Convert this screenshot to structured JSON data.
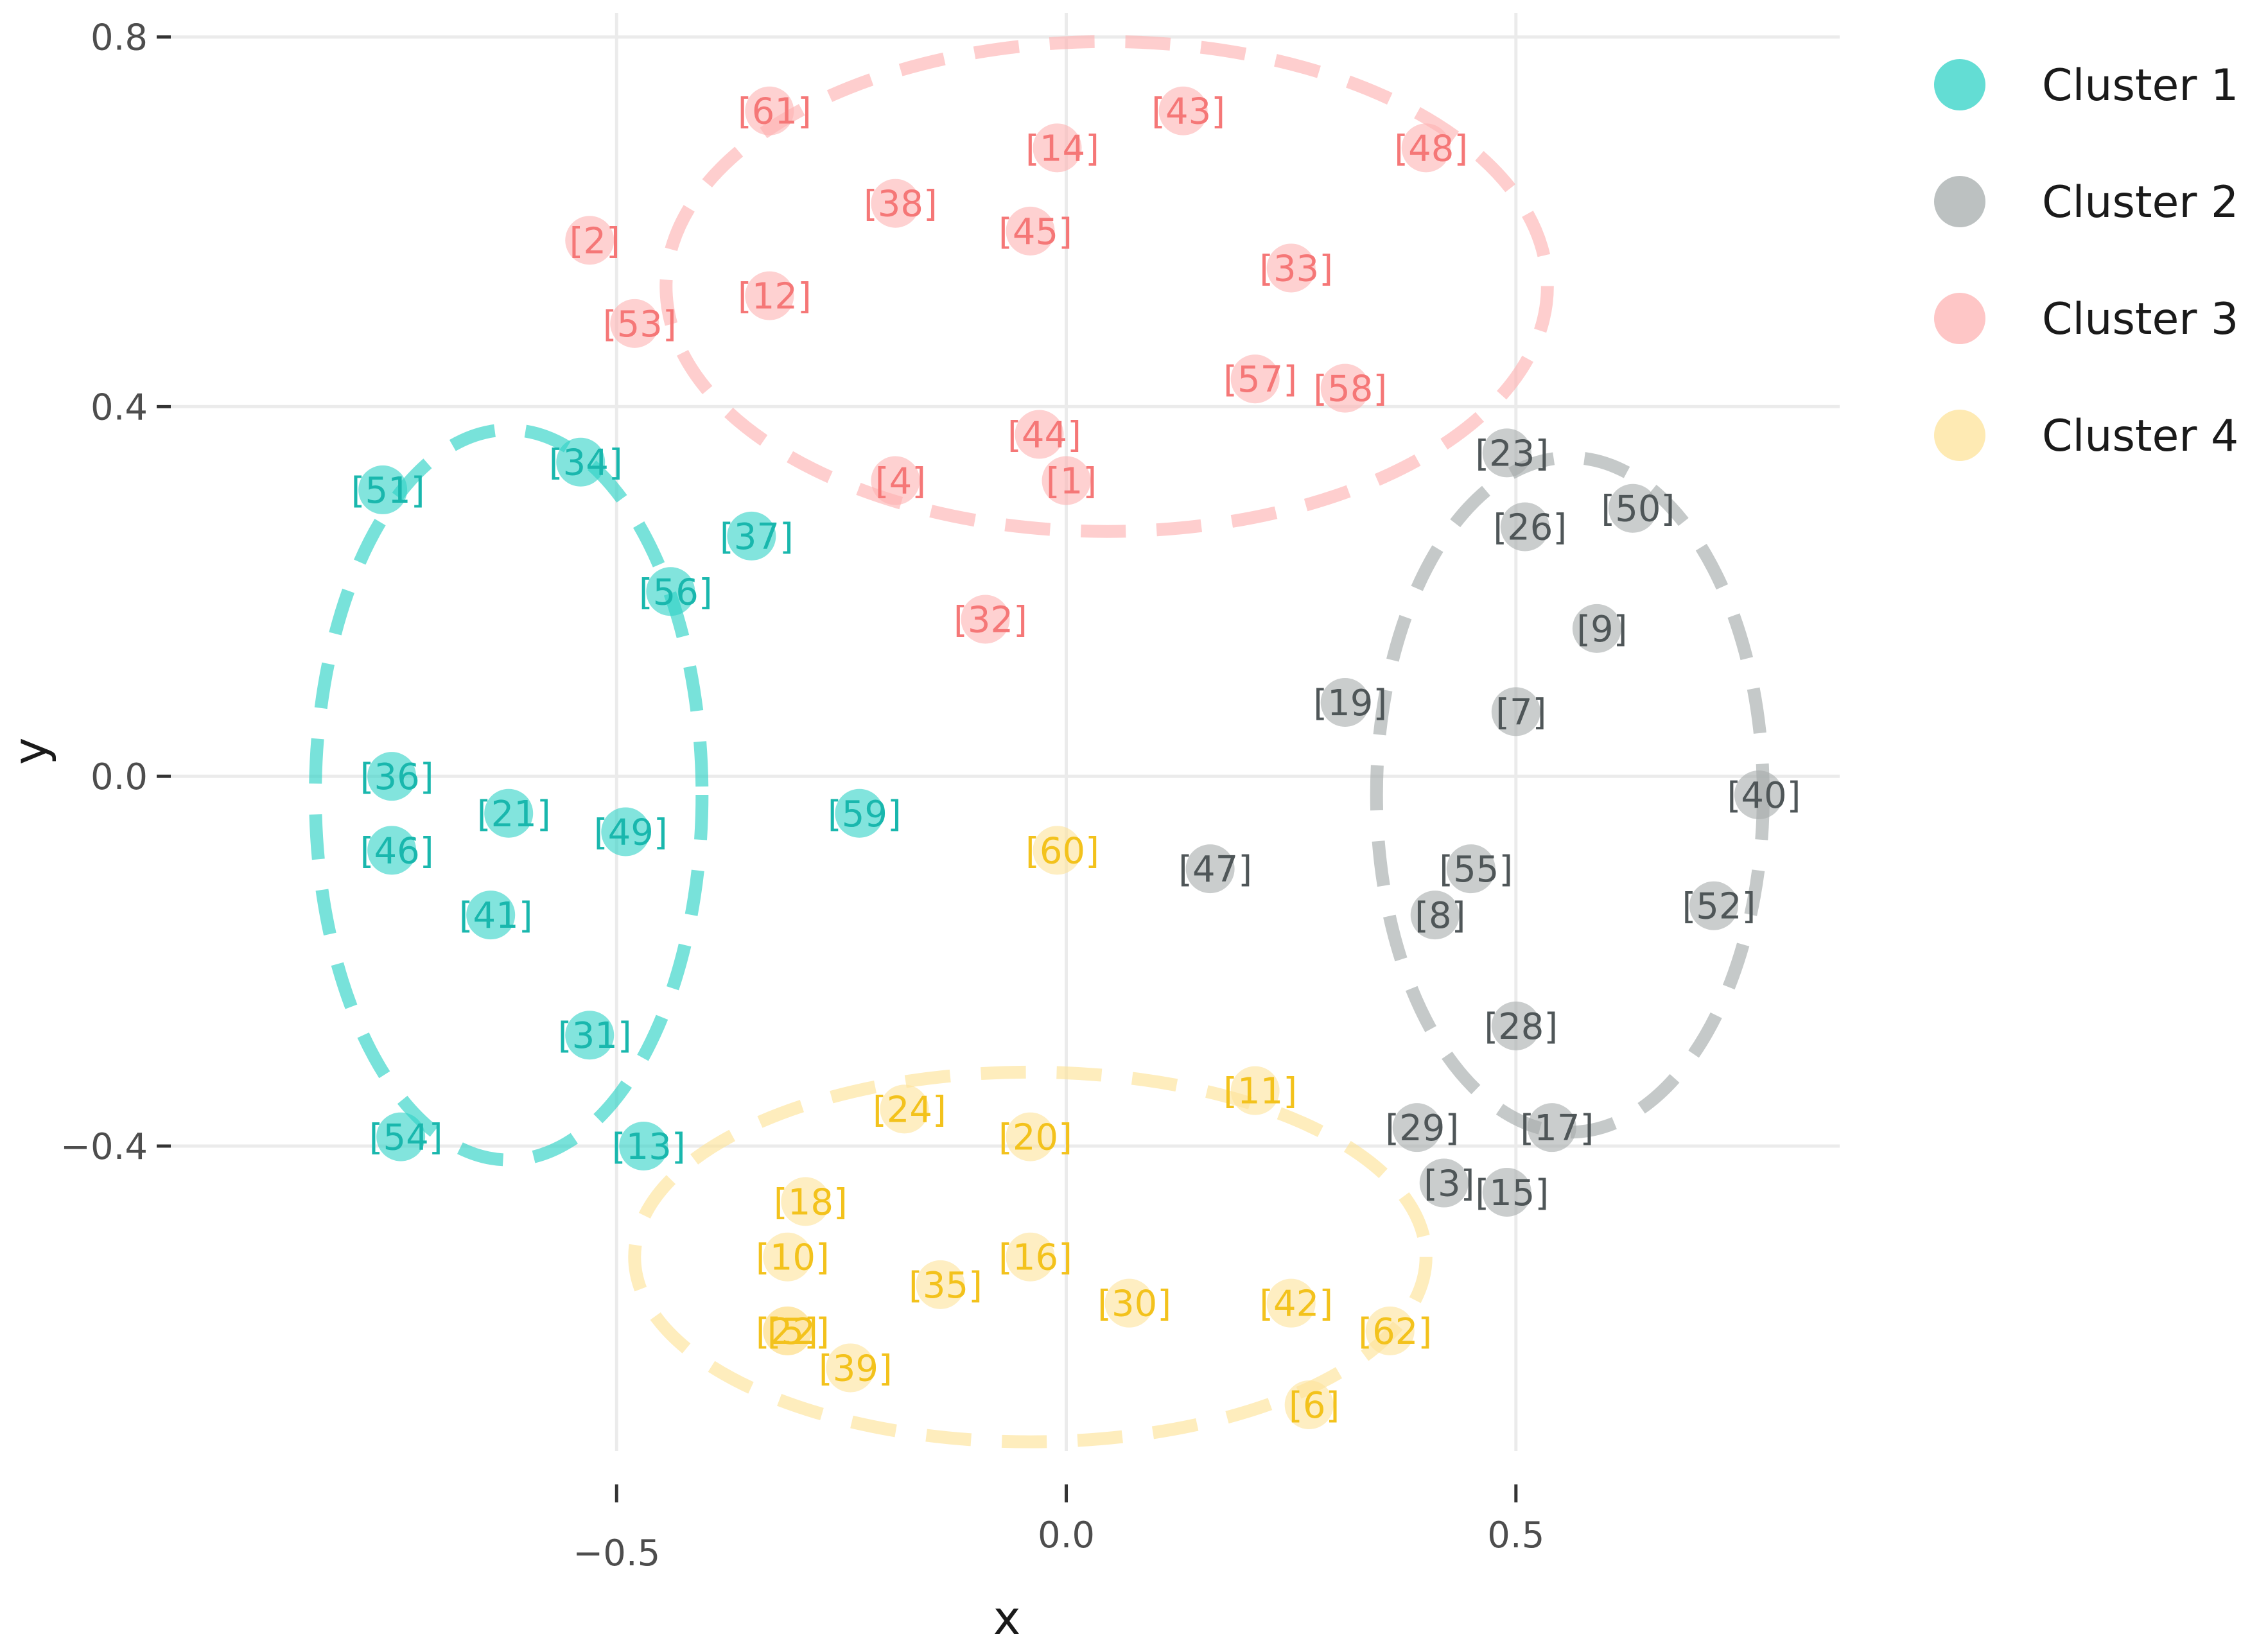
{
  "chart_data": {
    "type": "scatter",
    "title": "",
    "xlabel": "x",
    "ylabel": "y",
    "xlim": [
      -1.0,
      0.86
    ],
    "ylim": [
      -0.73,
      0.84
    ],
    "x_ticks": [
      {
        "value": -0.5,
        "label": "−0.5"
      },
      {
        "value": 0.0,
        "label": "0.0"
      },
      {
        "value": 0.5,
        "label": "0.5"
      }
    ],
    "y_ticks": [
      {
        "value": 0.8,
        "label": "0.8"
      },
      {
        "value": 0.4,
        "label": "0.4"
      },
      {
        "value": 0.0,
        "label": "0.0"
      },
      {
        "value": -0.4,
        "label": "−0.4"
      }
    ],
    "grid": true,
    "legend_position": "right",
    "series": [
      {
        "name": "Cluster 1",
        "color": "#2fd2c6",
        "label_color": "#19b7ad",
        "ellipse": {
          "cx": -0.62,
          "cy": -0.02,
          "rx": 0.215,
          "ry": 0.395
        },
        "points": [
          {
            "id": "[51]",
            "x": -0.76,
            "y": 0.31
          },
          {
            "id": "[34]",
            "x": -0.54,
            "y": 0.34
          },
          {
            "id": "[37]",
            "x": -0.35,
            "y": 0.26
          },
          {
            "id": "[56]",
            "x": -0.44,
            "y": 0.2
          },
          {
            "id": "[36]",
            "x": -0.75,
            "y": 0.0
          },
          {
            "id": "[21]",
            "x": -0.62,
            "y": -0.04
          },
          {
            "id": "[49]",
            "x": -0.49,
            "y": -0.06
          },
          {
            "id": "[46]",
            "x": -0.75,
            "y": -0.08
          },
          {
            "id": "[59]",
            "x": -0.23,
            "y": -0.04
          },
          {
            "id": "[41]",
            "x": -0.64,
            "y": -0.15
          },
          {
            "id": "[31]",
            "x": -0.53,
            "y": -0.28
          },
          {
            "id": "[54]",
            "x": -0.74,
            "y": -0.39
          },
          {
            "id": "[13]",
            "x": -0.47,
            "y": -0.4
          }
        ]
      },
      {
        "name": "Cluster 2",
        "color": "#a6acac",
        "label_color": "#4f5658",
        "ellipse": {
          "cx": 0.56,
          "cy": -0.02,
          "rx": 0.215,
          "ry": 0.365
        },
        "points": [
          {
            "id": "[23]",
            "x": 0.49,
            "y": 0.35
          },
          {
            "id": "[50]",
            "x": 0.63,
            "y": 0.29
          },
          {
            "id": "[26]",
            "x": 0.51,
            "y": 0.27
          },
          {
            "id": "[9]",
            "x": 0.59,
            "y": 0.16
          },
          {
            "id": "[19]",
            "x": 0.31,
            "y": 0.08
          },
          {
            "id": "[7]",
            "x": 0.5,
            "y": 0.07
          },
          {
            "id": "[40]",
            "x": 0.77,
            "y": -0.02
          },
          {
            "id": "[47]",
            "x": 0.16,
            "y": -0.1
          },
          {
            "id": "[55]",
            "x": 0.45,
            "y": -0.1
          },
          {
            "id": "[8]",
            "x": 0.41,
            "y": -0.15
          },
          {
            "id": "[52]",
            "x": 0.72,
            "y": -0.14
          },
          {
            "id": "[28]",
            "x": 0.5,
            "y": -0.27
          },
          {
            "id": "[29]",
            "x": 0.39,
            "y": -0.38
          },
          {
            "id": "[17]",
            "x": 0.54,
            "y": -0.38
          },
          {
            "id": "[3]",
            "x": 0.42,
            "y": -0.44
          },
          {
            "id": "[15]",
            "x": 0.49,
            "y": -0.45
          }
        ]
      },
      {
        "name": "Cluster 3",
        "color": "#fdb3b3",
        "label_color": "#f57777",
        "ellipse": {
          "cx": 0.045,
          "cy": 0.53,
          "rx": 0.49,
          "ry": 0.265
        },
        "points": [
          {
            "id": "[61]",
            "x": -0.33,
            "y": 0.72
          },
          {
            "id": "[43]",
            "x": 0.13,
            "y": 0.72
          },
          {
            "id": "[14]",
            "x": -0.01,
            "y": 0.68
          },
          {
            "id": "[48]",
            "x": 0.4,
            "y": 0.68
          },
          {
            "id": "[38]",
            "x": -0.19,
            "y": 0.62
          },
          {
            "id": "[45]",
            "x": -0.04,
            "y": 0.59
          },
          {
            "id": "[2]",
            "x": -0.53,
            "y": 0.58
          },
          {
            "id": "[33]",
            "x": 0.25,
            "y": 0.55
          },
          {
            "id": "[12]",
            "x": -0.33,
            "y": 0.52
          },
          {
            "id": "[53]",
            "x": -0.48,
            "y": 0.49
          },
          {
            "id": "[57]",
            "x": 0.21,
            "y": 0.43
          },
          {
            "id": "[58]",
            "x": 0.31,
            "y": 0.42
          },
          {
            "id": "[44]",
            "x": -0.03,
            "y": 0.37
          },
          {
            "id": "[4]",
            "x": -0.19,
            "y": 0.32
          },
          {
            "id": "[1]",
            "x": 0.0,
            "y": 0.32
          },
          {
            "id": "[32]",
            "x": -0.09,
            "y": 0.17
          }
        ]
      },
      {
        "name": "Cluster 4",
        "color": "#fde39a",
        "label_color": "#f3c21c",
        "ellipse": {
          "cx": -0.04,
          "cy": -0.52,
          "rx": 0.44,
          "ry": 0.2
        },
        "points": [
          {
            "id": "[60]",
            "x": -0.01,
            "y": -0.08
          },
          {
            "id": "[11]",
            "x": 0.21,
            "y": -0.34
          },
          {
            "id": "[24]",
            "x": -0.18,
            "y": -0.36
          },
          {
            "id": "[20]",
            "x": -0.04,
            "y": -0.39
          },
          {
            "id": "[18]",
            "x": -0.29,
            "y": -0.46
          },
          {
            "id": "[10]",
            "x": -0.31,
            "y": -0.52
          },
          {
            "id": "[16]",
            "x": -0.04,
            "y": -0.52
          },
          {
            "id": "[35]",
            "x": -0.14,
            "y": -0.55
          },
          {
            "id": "[30]",
            "x": 0.07,
            "y": -0.57
          },
          {
            "id": "[42]",
            "x": 0.25,
            "y": -0.57
          },
          {
            "id": "[62]",
            "x": 0.36,
            "y": -0.6
          },
          {
            "id": "[22]",
            "x": -0.31,
            "y": -0.6
          },
          {
            "id": "[5]",
            "x": -0.31,
            "y": -0.6
          },
          {
            "id": "[39]",
            "x": -0.24,
            "y": -0.64
          },
          {
            "id": "[6]",
            "x": 0.27,
            "y": -0.68
          }
        ]
      }
    ]
  }
}
